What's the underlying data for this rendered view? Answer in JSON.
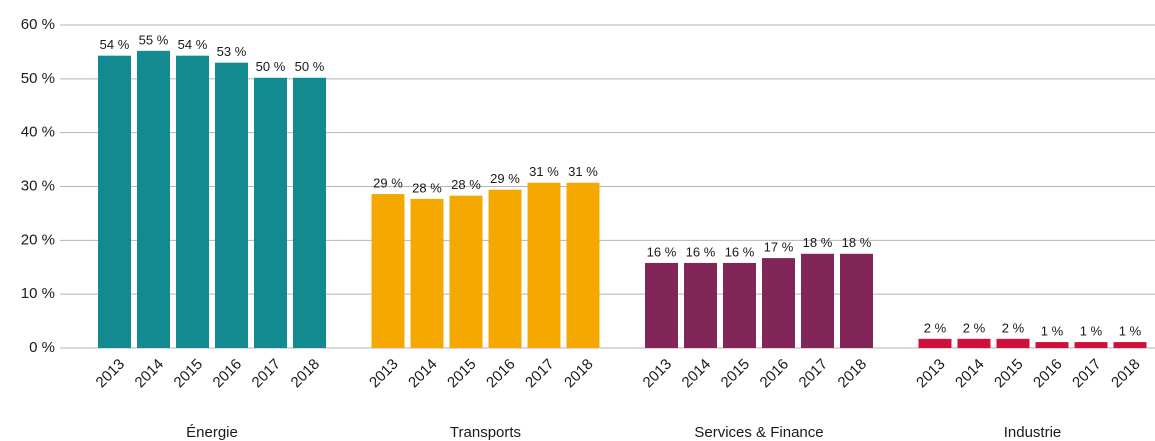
{
  "chart_data": {
    "type": "grouped_bar",
    "ylim": [
      0,
      60
    ],
    "yticks": [
      {
        "value": 0,
        "label": "0 %"
      },
      {
        "value": 10,
        "label": "10 %"
      },
      {
        "value": 20,
        "label": "20 %"
      },
      {
        "value": 30,
        "label": "30 %"
      },
      {
        "value": 40,
        "label": "40 %"
      },
      {
        "value": 50,
        "label": "50 %"
      },
      {
        "value": 60,
        "label": "60 %"
      }
    ],
    "grid": true,
    "groups": [
      {
        "name": "Énergie",
        "color": "#138a8f",
        "categories": [
          "2013",
          "2014",
          "2015",
          "2016",
          "2017",
          "2018"
        ],
        "values": [
          54.3,
          55.2,
          54.3,
          53.0,
          50.2,
          50.2
        ],
        "value_labels": [
          "54 %",
          "55 %",
          "54 %",
          "53 %",
          "50 %",
          "50 %"
        ]
      },
      {
        "name": "Transports",
        "color": "#f5a800",
        "categories": [
          "2013",
          "2014",
          "2015",
          "2016",
          "2017",
          "2018"
        ],
        "values": [
          28.6,
          27.7,
          28.3,
          29.4,
          30.7,
          30.7
        ],
        "value_labels": [
          "29 %",
          "28 %",
          "28 %",
          "29 %",
          "31 %",
          "31 %"
        ]
      },
      {
        "name": "Services & Finance",
        "color": "#82265a",
        "categories": [
          "2013",
          "2014",
          "2015",
          "2016",
          "2017",
          "2018"
        ],
        "values": [
          15.8,
          15.8,
          15.8,
          16.7,
          17.5,
          17.5
        ],
        "value_labels": [
          "16 %",
          "16 %",
          "16 %",
          "17 %",
          "18 %",
          "18 %"
        ]
      },
      {
        "name": "Industrie",
        "color": "#d0103a",
        "categories": [
          "2013",
          "2014",
          "2015",
          "2016",
          "2017",
          "2018"
        ],
        "values": [
          1.7,
          1.7,
          1.7,
          1.1,
          1.1,
          1.1
        ],
        "value_labels": [
          "2 %",
          "2 %",
          "2 %",
          "1 %",
          "1 %",
          "1 %"
        ]
      }
    ]
  }
}
